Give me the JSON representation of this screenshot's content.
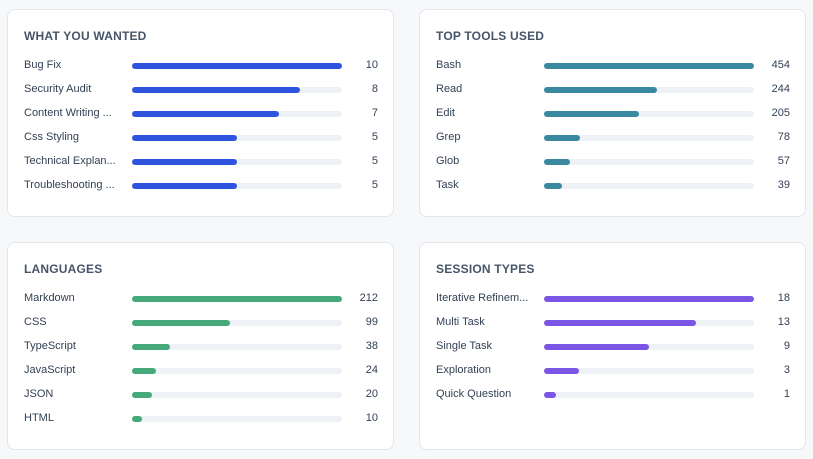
{
  "panels": [
    {
      "title": "WHAT YOU WANTED",
      "color": "#2f55e0",
      "max": 10,
      "items": [
        {
          "label": "Bug Fix",
          "value": 10
        },
        {
          "label": "Security Audit",
          "value": 8
        },
        {
          "label": "Content Writing ...",
          "value": 7
        },
        {
          "label": "Css Styling",
          "value": 5
        },
        {
          "label": "Technical Explan...",
          "value": 5
        },
        {
          "label": "Troubleshooting ...",
          "value": 5
        }
      ]
    },
    {
      "title": "TOP TOOLS USED",
      "color": "#3a89a1",
      "max": 454,
      "items": [
        {
          "label": "Bash",
          "value": 454
        },
        {
          "label": "Read",
          "value": 244
        },
        {
          "label": "Edit",
          "value": 205
        },
        {
          "label": "Grep",
          "value": 78
        },
        {
          "label": "Glob",
          "value": 57
        },
        {
          "label": "Task",
          "value": 39
        }
      ]
    },
    {
      "title": "LANGUAGES",
      "color": "#45a97a",
      "max": 212,
      "items": [
        {
          "label": "Markdown",
          "value": 212
        },
        {
          "label": "CSS",
          "value": 99
        },
        {
          "label": "TypeScript",
          "value": 38
        },
        {
          "label": "JavaScript",
          "value": 24
        },
        {
          "label": "JSON",
          "value": 20
        },
        {
          "label": "HTML",
          "value": 10
        }
      ]
    },
    {
      "title": "SESSION TYPES",
      "color": "#7a55e6",
      "max": 18,
      "items": [
        {
          "label": "Iterative Refinem...",
          "value": 18
        },
        {
          "label": "Multi Task",
          "value": 13
        },
        {
          "label": "Single Task",
          "value": 9
        },
        {
          "label": "Exploration",
          "value": 3
        },
        {
          "label": "Quick Question",
          "value": 1
        }
      ]
    }
  ]
}
